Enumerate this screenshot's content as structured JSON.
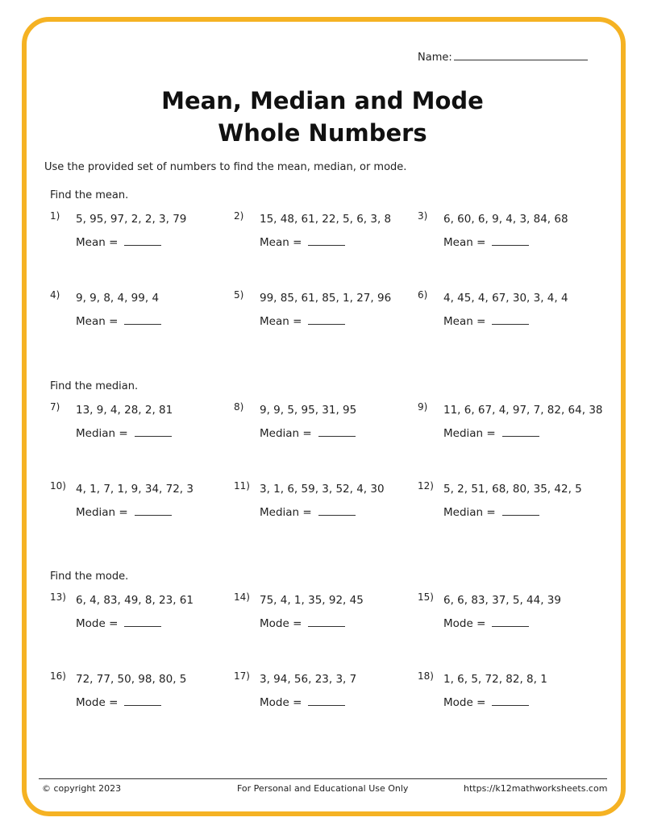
{
  "header": {
    "name_label": "Name:"
  },
  "title": {
    "line1": "Mean, Median and Mode",
    "line2": "Whole Numbers"
  },
  "instructions": "Use the provided set of numbers to find the mean, median, or mode.",
  "sections": [
    {
      "label": "Find the mean.",
      "answer_label": "Mean =",
      "problems": [
        {
          "num": "1)",
          "values": "5, 95, 97, 2, 2, 3, 79"
        },
        {
          "num": "2)",
          "values": "15, 48, 61, 22, 5, 6, 3, 8"
        },
        {
          "num": "3)",
          "values": "6, 60, 6, 9, 4, 3, 84, 68"
        },
        {
          "num": "4)",
          "values": "9, 9, 8, 4, 99, 4"
        },
        {
          "num": "5)",
          "values": "99, 85, 61, 85, 1, 27, 96"
        },
        {
          "num": "6)",
          "values": "4, 45, 4, 67, 30, 3, 4, 4"
        }
      ]
    },
    {
      "label": "Find the median.",
      "answer_label": "Median =",
      "problems": [
        {
          "num": "7)",
          "values": "13, 9, 4, 28, 2, 81"
        },
        {
          "num": "8)",
          "values": "9, 9, 5, 95, 31, 95"
        },
        {
          "num": "9)",
          "values": "11, 6, 67, 4, 97, 7, 82, 64, 38"
        },
        {
          "num": "10)",
          "values": "4, 1, 7, 1, 9, 34, 72, 3"
        },
        {
          "num": "11)",
          "values": "3, 1, 6, 59, 3, 52, 4, 30"
        },
        {
          "num": "12)",
          "values": "5, 2, 51, 68, 80, 35, 42, 5"
        }
      ]
    },
    {
      "label": "Find the mode.",
      "answer_label": "Mode =",
      "problems": [
        {
          "num": "13)",
          "values": "6, 4, 83, 49, 8, 23, 61"
        },
        {
          "num": "14)",
          "values": "75, 4, 1, 35, 92, 45"
        },
        {
          "num": "15)",
          "values": "6, 6, 83, 37, 5, 44, 39"
        },
        {
          "num": "16)",
          "values": "72, 77, 50, 98, 80, 5"
        },
        {
          "num": "17)",
          "values": "3, 94, 56, 23, 3, 7"
        },
        {
          "num": "18)",
          "values": "1, 6, 5, 72, 82, 8, 1"
        }
      ]
    }
  ],
  "footer": {
    "copyright": "© copyright 2023",
    "usage": "For Personal and Educational Use Only",
    "url": "https://k12mathworksheets.com"
  },
  "colors": {
    "border": "#f5b223"
  }
}
